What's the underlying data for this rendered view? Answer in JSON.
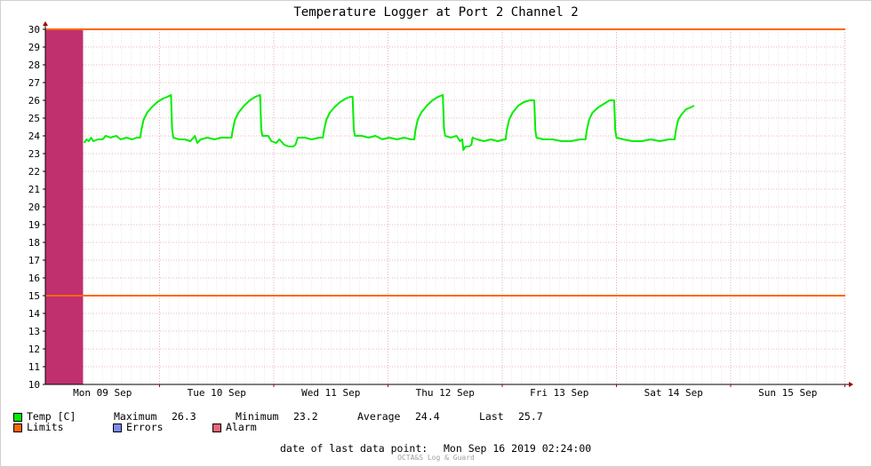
{
  "window": {
    "title": "Temperature Logger at Port 2 Channel 2"
  },
  "colors": {
    "temp": "#00ee00",
    "limits": "#ff6600",
    "errors": "#7b8cf0",
    "alarm": "#ee6677",
    "alarm_band": "#c0306f",
    "grid": "#e6a0a0"
  },
  "legend": {
    "temp_label": "Temp [C]",
    "max_label": "Maximum",
    "max_value": "26.3",
    "min_label": "Minimum",
    "min_value": "23.2",
    "avg_label": "Average",
    "avg_value": "24.4",
    "last_label": "Last",
    "last_value": "25.7",
    "limits_label": "Limits",
    "errors_label": "Errors",
    "alarm_label": "Alarm"
  },
  "footer": {
    "date_label": "date of last data point:",
    "date_value": "Mon Sep 16 2019 02:24:00",
    "watermark": "OCTA&S Log & Guard"
  },
  "chart_data": {
    "type": "line",
    "title": "Temperature Logger at Port 2 Channel 2",
    "x_unit": "day",
    "x_range": [
      0,
      7.1
    ],
    "x_labels": [
      {
        "x": 0.5,
        "label": "Mon 09 Sep"
      },
      {
        "x": 1.5,
        "label": "Tue 10 Sep"
      },
      {
        "x": 2.5,
        "label": "Wed 11 Sep"
      },
      {
        "x": 3.5,
        "label": "Thu 12 Sep"
      },
      {
        "x": 4.5,
        "label": "Fri 13 Sep"
      },
      {
        "x": 5.5,
        "label": "Sat 14 Sep"
      },
      {
        "x": 6.5,
        "label": "Sun 15 Sep"
      }
    ],
    "ylim": [
      10,
      30
    ],
    "y_ticks": [
      10,
      11,
      12,
      13,
      14,
      15,
      16,
      17,
      18,
      19,
      20,
      21,
      22,
      23,
      24,
      25,
      26,
      27,
      28,
      29,
      30
    ],
    "grid": true,
    "limits": [
      30,
      15
    ],
    "alarm_band": [
      0,
      0.33
    ],
    "series": [
      {
        "name": "Temp [C]",
        "points": [
          [
            0.34,
            23.6
          ],
          [
            0.36,
            23.8
          ],
          [
            0.38,
            23.7
          ],
          [
            0.4,
            23.9
          ],
          [
            0.42,
            23.7
          ],
          [
            0.46,
            23.8
          ],
          [
            0.5,
            23.8
          ],
          [
            0.53,
            24.0
          ],
          [
            0.57,
            23.9
          ],
          [
            0.62,
            24.0
          ],
          [
            0.66,
            23.8
          ],
          [
            0.71,
            23.9
          ],
          [
            0.76,
            23.8
          ],
          [
            0.8,
            23.9
          ],
          [
            0.83,
            23.9
          ],
          [
            0.84,
            24.3
          ],
          [
            0.86,
            24.9
          ],
          [
            0.89,
            25.3
          ],
          [
            0.93,
            25.6
          ],
          [
            0.98,
            25.9
          ],
          [
            1.03,
            26.1
          ],
          [
            1.07,
            26.2
          ],
          [
            1.1,
            26.3
          ],
          [
            1.11,
            24.4
          ],
          [
            1.12,
            23.9
          ],
          [
            1.17,
            23.8
          ],
          [
            1.22,
            23.8
          ],
          [
            1.27,
            23.7
          ],
          [
            1.31,
            24.0
          ],
          [
            1.33,
            23.6
          ],
          [
            1.36,
            23.8
          ],
          [
            1.42,
            23.9
          ],
          [
            1.48,
            23.8
          ],
          [
            1.54,
            23.9
          ],
          [
            1.6,
            23.9
          ],
          [
            1.63,
            23.9
          ],
          [
            1.64,
            24.3
          ],
          [
            1.66,
            24.9
          ],
          [
            1.69,
            25.3
          ],
          [
            1.74,
            25.7
          ],
          [
            1.79,
            26.0
          ],
          [
            1.84,
            26.2
          ],
          [
            1.88,
            26.3
          ],
          [
            1.89,
            24.4
          ],
          [
            1.9,
            24.0
          ],
          [
            1.95,
            24.0
          ],
          [
            1.98,
            23.7
          ],
          [
            2.02,
            23.6
          ],
          [
            2.05,
            23.8
          ],
          [
            2.09,
            23.5
          ],
          [
            2.13,
            23.4
          ],
          [
            2.17,
            23.4
          ],
          [
            2.19,
            23.5
          ],
          [
            2.21,
            23.9
          ],
          [
            2.27,
            23.9
          ],
          [
            2.33,
            23.8
          ],
          [
            2.4,
            23.9
          ],
          [
            2.43,
            23.9
          ],
          [
            2.44,
            24.3
          ],
          [
            2.46,
            24.9
          ],
          [
            2.49,
            25.3
          ],
          [
            2.53,
            25.6
          ],
          [
            2.58,
            25.9
          ],
          [
            2.63,
            26.1
          ],
          [
            2.67,
            26.2
          ],
          [
            2.69,
            26.2
          ],
          [
            2.7,
            24.4
          ],
          [
            2.71,
            24.0
          ],
          [
            2.77,
            24.0
          ],
          [
            2.83,
            23.9
          ],
          [
            2.89,
            24.0
          ],
          [
            2.95,
            23.8
          ],
          [
            3.01,
            23.9
          ],
          [
            3.08,
            23.8
          ],
          [
            3.14,
            23.9
          ],
          [
            3.2,
            23.8
          ],
          [
            3.23,
            23.8
          ],
          [
            3.24,
            24.3
          ],
          [
            3.26,
            24.9
          ],
          [
            3.29,
            25.3
          ],
          [
            3.34,
            25.7
          ],
          [
            3.39,
            26.0
          ],
          [
            3.44,
            26.2
          ],
          [
            3.48,
            26.3
          ],
          [
            3.49,
            24.4
          ],
          [
            3.5,
            24.0
          ],
          [
            3.55,
            23.9
          ],
          [
            3.6,
            24.0
          ],
          [
            3.63,
            23.7
          ],
          [
            3.65,
            23.8
          ],
          [
            3.66,
            23.2
          ],
          [
            3.68,
            23.4
          ],
          [
            3.71,
            23.4
          ],
          [
            3.73,
            23.5
          ],
          [
            3.74,
            23.9
          ],
          [
            3.78,
            23.8
          ],
          [
            3.84,
            23.7
          ],
          [
            3.9,
            23.8
          ],
          [
            3.96,
            23.7
          ],
          [
            4.02,
            23.8
          ],
          [
            4.03,
            23.8
          ],
          [
            4.04,
            24.3
          ],
          [
            4.06,
            24.9
          ],
          [
            4.09,
            25.3
          ],
          [
            4.14,
            25.7
          ],
          [
            4.19,
            25.9
          ],
          [
            4.24,
            26.0
          ],
          [
            4.28,
            26.0
          ],
          [
            4.29,
            24.3
          ],
          [
            4.3,
            23.9
          ],
          [
            4.36,
            23.8
          ],
          [
            4.44,
            23.8
          ],
          [
            4.52,
            23.7
          ],
          [
            4.6,
            23.7
          ],
          [
            4.68,
            23.8
          ],
          [
            4.73,
            23.8
          ],
          [
            4.74,
            24.3
          ],
          [
            4.76,
            24.9
          ],
          [
            4.79,
            25.3
          ],
          [
            4.84,
            25.6
          ],
          [
            4.89,
            25.8
          ],
          [
            4.94,
            26.0
          ],
          [
            4.98,
            26.0
          ],
          [
            4.99,
            24.3
          ],
          [
            5.0,
            23.9
          ],
          [
            5.06,
            23.8
          ],
          [
            5.14,
            23.7
          ],
          [
            5.22,
            23.7
          ],
          [
            5.3,
            23.8
          ],
          [
            5.38,
            23.7
          ],
          [
            5.46,
            23.8
          ],
          [
            5.51,
            23.8
          ],
          [
            5.52,
            24.3
          ],
          [
            5.54,
            24.9
          ],
          [
            5.57,
            25.2
          ],
          [
            5.61,
            25.5
          ],
          [
            5.65,
            25.6
          ],
          [
            5.68,
            25.7
          ]
        ]
      }
    ]
  }
}
